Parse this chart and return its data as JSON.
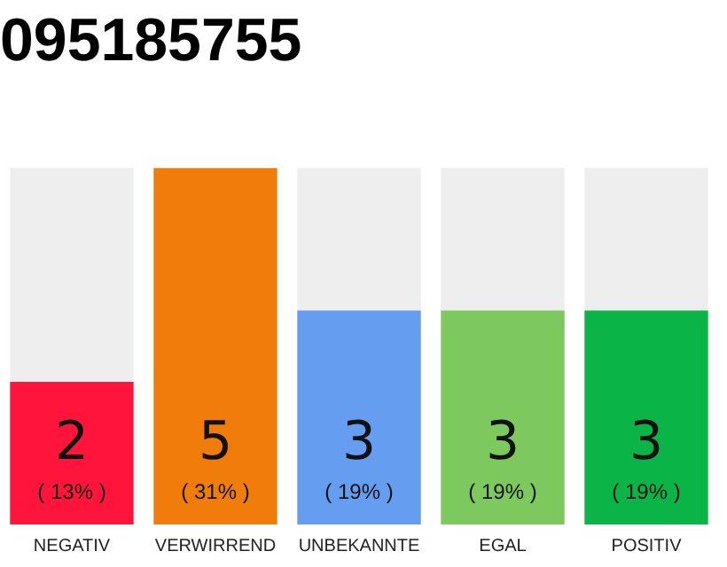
{
  "chart_data": {
    "type": "bar",
    "title": "095185755",
    "categories": [
      "NEGATIV",
      "VERWIRREND",
      "UNBEKANNTE",
      "EGAL",
      "POSITIV"
    ],
    "values": [
      2,
      5,
      3,
      3,
      3
    ],
    "colors": [
      "#ff143c",
      "#f07d0a",
      "#659df0",
      "#7dc95e",
      "#0ab446"
    ],
    "value_labels": [
      "2\n( 13% )",
      "5\n( 31% )",
      "3\n( 19% )",
      "3\n( 19% )",
      "3\n( 19% )"
    ],
    "ylim": [
      0,
      5
    ],
    "tick_labels": "x",
    "grid": false,
    "legend": false
  }
}
